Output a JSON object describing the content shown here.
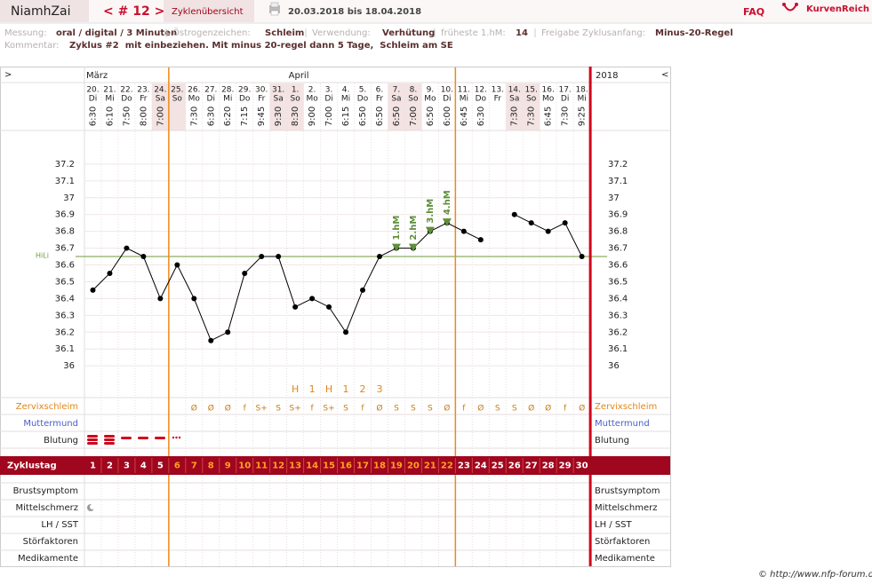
{
  "header": {
    "name": "NiamhZai",
    "cycle_nav": "< # 12 >",
    "overview": "Zyklenübersicht",
    "range": "20.03.2018 bis 18.04.2018",
    "faq": "FAQ",
    "brand": "KurvenReich"
  },
  "info": {
    "fields": [
      {
        "label": "Messung:",
        "value": "oral / digital / 3 Minuten"
      },
      {
        "label": "Östrogenzeichen:",
        "value": "Schleim"
      },
      {
        "label": "Verwendung:",
        "value": "Verhütung"
      },
      {
        "label": "früheste 1.hM:",
        "value": "14"
      },
      {
        "label": "Freigabe Zyklusanfang:",
        "value": "Minus-20-Regel"
      }
    ],
    "comment_label": "Kommentar:",
    "comment": "Zyklus #2  mit einbeziehen. Mit minus 20-regel dann 5 Tage,  Schleim am SE"
  },
  "footer": "© http://www.nfp-forum.de",
  "chart_data": {
    "type": "line",
    "nav_left": ">",
    "nav_right": "<",
    "year": "2018",
    "months": [
      {
        "label": "März",
        "day": 1
      },
      {
        "label": "April",
        "day": 13
      }
    ],
    "dates": [
      "20.",
      "21.",
      "22.",
      "23.",
      "24.",
      "25.",
      "26.",
      "27.",
      "28.",
      "29.",
      "30.",
      "31.",
      "1.",
      "2.",
      "3.",
      "4.",
      "5.",
      "6.",
      "7.",
      "8.",
      "9.",
      "10.",
      "11.",
      "12.",
      "13.",
      "14.",
      "15.",
      "16.",
      "17.",
      "18."
    ],
    "weekdays": [
      "Di",
      "Mi",
      "Do",
      "Fr",
      "Sa",
      "So",
      "Mo",
      "Di",
      "Mi",
      "Do",
      "Fr",
      "Sa",
      "So",
      "Mo",
      "Di",
      "Mi",
      "Do",
      "Fr",
      "Sa",
      "So",
      "Mo",
      "Di",
      "Mi",
      "Do",
      "Fr",
      "Sa",
      "So",
      "Mo",
      "Di",
      "Mi"
    ],
    "shaded_columns": [
      5,
      6,
      12,
      13,
      19,
      20,
      26,
      27
    ],
    "times": [
      "6:30",
      "6:10",
      "7:50",
      "8:00",
      "7:00",
      null,
      "7:30",
      "6:30",
      "6:20",
      "7:15",
      "9:45",
      "9:30",
      "8:30",
      "9:00",
      "7:00",
      "6:15",
      "6:50",
      "6:50",
      "6:50",
      "7:00",
      "6:50",
      "6:00",
      "6:45",
      "6:30",
      null,
      "7:30",
      "7:30",
      "6:45",
      "7:30",
      "9:25"
    ],
    "values": [
      36.45,
      36.55,
      36.7,
      36.65,
      36.4,
      36.6,
      36.4,
      36.15,
      36.2,
      36.55,
      36.65,
      36.65,
      36.35,
      36.4,
      36.35,
      36.2,
      36.45,
      36.65,
      36.7,
      36.7,
      36.8,
      36.85,
      36.8,
      36.75,
      null,
      36.9,
      36.85,
      36.8,
      36.85,
      36.65
    ],
    "color": "#000000",
    "ylim": [
      35.8,
      37.4
    ],
    "yticks": [
      36,
      36.1,
      36.2,
      36.3,
      36.4,
      36.5,
      36.6,
      36.7,
      36.8,
      36.9,
      37,
      37.1,
      37.2
    ],
    "grid": true,
    "hiline": {
      "label": "HiLi",
      "value": 36.65,
      "color": "#6f9a3e"
    },
    "hm_markers": [
      {
        "label": "1.hM",
        "day": 19
      },
      {
        "label": "2.hM",
        "day": 20
      },
      {
        "label": "3.hM",
        "day": 21
      },
      {
        "label": "4.hM",
        "day": 22
      }
    ],
    "hm_color": "#5f8f3a",
    "phase_lines": [
      6,
      23
    ],
    "peak_row": [
      null,
      null,
      null,
      null,
      null,
      null,
      null,
      null,
      null,
      null,
      null,
      null,
      "H",
      "1",
      "H",
      "1",
      "2",
      "3",
      null,
      null,
      null,
      null,
      null,
      null,
      null,
      null,
      null,
      null,
      null,
      null
    ],
    "mucus": [
      null,
      null,
      null,
      null,
      null,
      null,
      "Ø",
      "Ø",
      "Ø",
      "f",
      "S+",
      "S",
      "S+",
      "f",
      "S+",
      "S",
      "f",
      "Ø",
      "S",
      "S",
      "S",
      "Ø",
      "f",
      "Ø",
      "S",
      "S",
      "Ø",
      "Ø",
      "f",
      "Ø"
    ],
    "row_labels": {
      "mucus": "Zervixschleim",
      "cervix": "Muttermund",
      "bleeding": "Blutung",
      "breast": "Brustsymptom",
      "midpain": "Mittelschmerz",
      "lh": "LH / SST",
      "disturb": "Störfaktoren",
      "meds": "Medikamente"
    },
    "cycle_day_label": "Zyklustag",
    "cycle_days": [
      1,
      2,
      3,
      4,
      5,
      6,
      7,
      8,
      9,
      10,
      11,
      12,
      13,
      14,
      15,
      16,
      17,
      18,
      19,
      20,
      21,
      22,
      23,
      24,
      25,
      26,
      27,
      28,
      29,
      30
    ]
  }
}
